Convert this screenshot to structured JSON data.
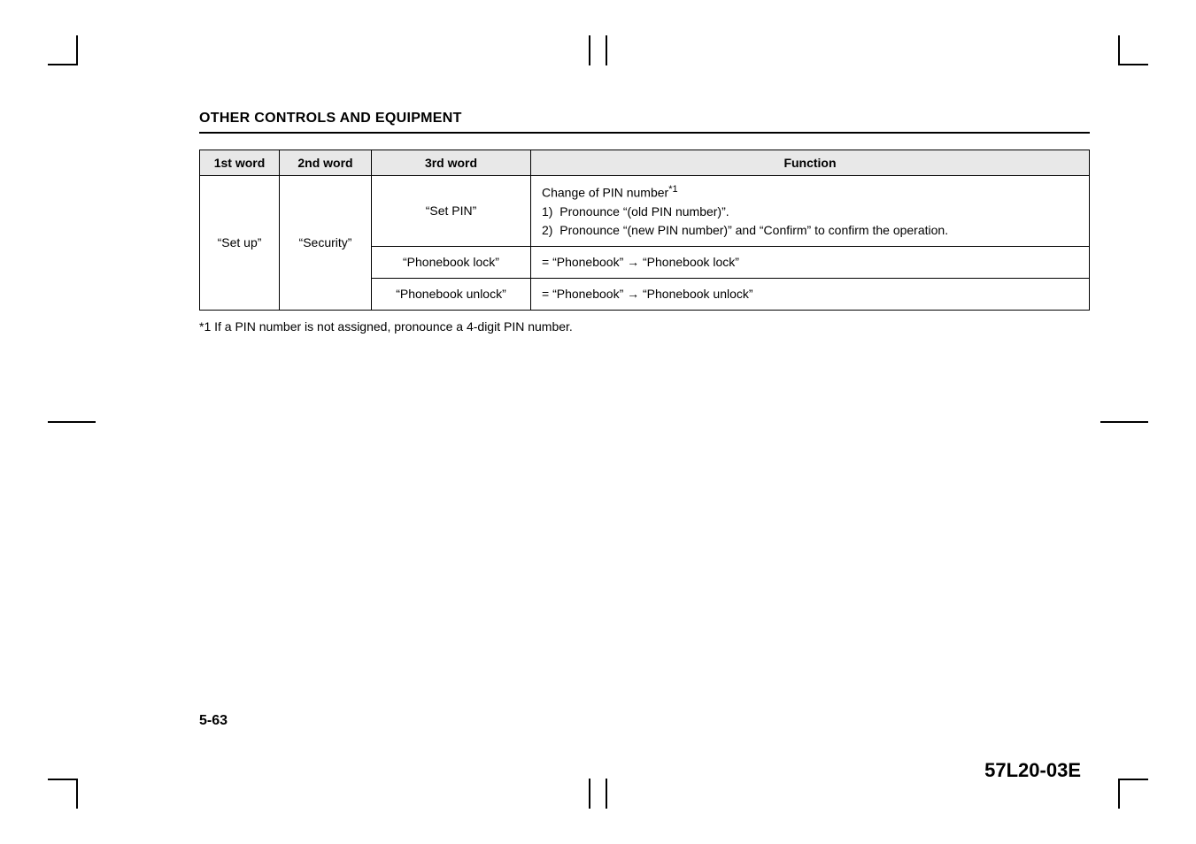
{
  "heading": "OTHER CONTROLS AND EQUIPMENT",
  "table": {
    "headers": {
      "col1": "1st word",
      "col2": "2nd word",
      "col3": "3rd word",
      "col4": "Function"
    },
    "firstWord": "“Set up”",
    "secondWord": "“Security”",
    "rows": {
      "setpin": {
        "thirdWord": "“Set PIN”",
        "functionTitle": "Change of PIN number",
        "functionRef": "*1",
        "functionItem1": "1)  Pronounce “(old PIN number)”.",
        "functionItem2": "2)  Pronounce “(new PIN number)” and “Confirm” to confirm the operation."
      },
      "lock": {
        "thirdWord": "“Phonebook lock”",
        "functionPrefix": "= “Phonebook” ",
        "functionArrow": "→",
        "functionSuffix": " “Phonebook lock”"
      },
      "unlock": {
        "thirdWord": "“Phonebook unlock”",
        "functionPrefix": "= “Phonebook” ",
        "functionArrow": "→",
        "functionSuffix": " “Phonebook unlock”"
      }
    }
  },
  "footnote": "*1 If a PIN number is not assigned, pronounce a 4-digit PIN number.",
  "pageNumber": "5-63",
  "docCode": "57L20-03E"
}
